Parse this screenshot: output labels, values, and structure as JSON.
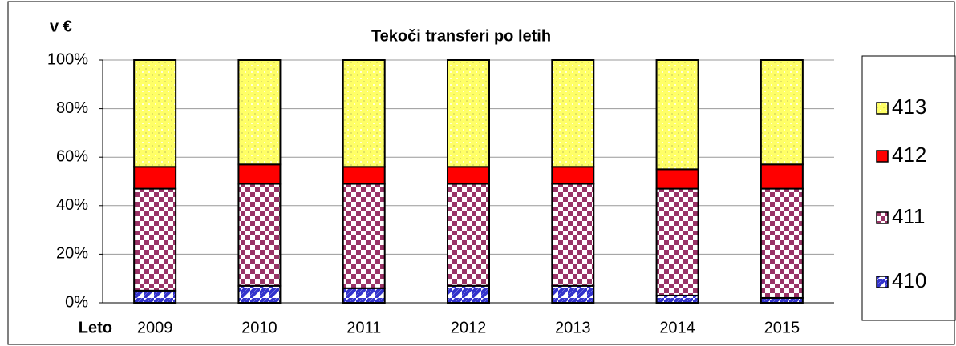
{
  "chart_data": {
    "type": "stacked_bar_100",
    "title": "Tekoči transferi po letih",
    "y_label": "v €",
    "x_label": "Leto",
    "categories": [
      "2009",
      "2010",
      "2011",
      "2012",
      "2013",
      "2014",
      "2015"
    ],
    "series": [
      {
        "name": "410",
        "color": "#3333cc",
        "values": [
          5,
          7,
          6,
          7,
          7,
          3,
          2
        ]
      },
      {
        "name": "411",
        "color": "#993366",
        "values": [
          42,
          42,
          43,
          42,
          42,
          44,
          45
        ]
      },
      {
        "name": "412",
        "color": "#ff0000",
        "values": [
          9,
          8,
          7,
          7,
          7,
          8,
          10
        ]
      },
      {
        "name": "413",
        "color": "#ffff66",
        "values": [
          44,
          43,
          44,
          44,
          44,
          45,
          43
        ]
      }
    ],
    "ylim": [
      0,
      100
    ],
    "yticks": [
      {
        "value": 0,
        "label": "0%"
      },
      {
        "value": 20,
        "label": "20%"
      },
      {
        "value": 40,
        "label": "40%"
      },
      {
        "value": 60,
        "label": "60%"
      },
      {
        "value": 80,
        "label": "80%"
      },
      {
        "value": 100,
        "label": "100%"
      }
    ],
    "grid": true
  }
}
